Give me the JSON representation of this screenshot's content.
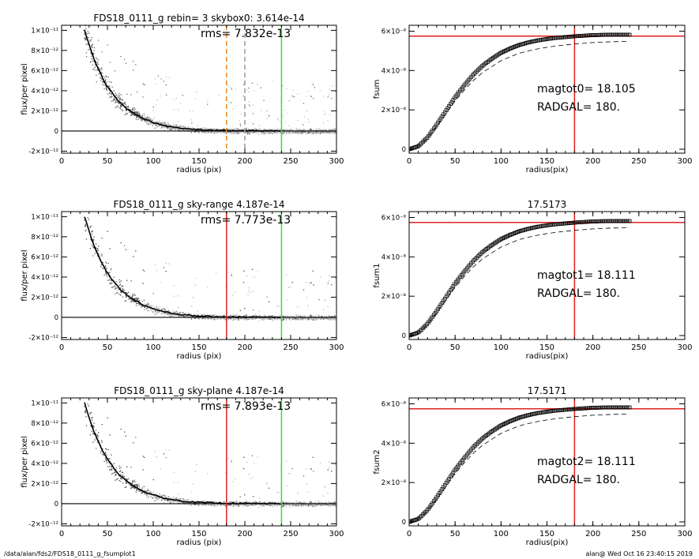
{
  "footer": {
    "left": "/data/alan/fds2/FDS18_0111_g_fsumplot1",
    "right": "alan@  Wed Oct 16 23:40:15 2019"
  },
  "colors": {
    "red": "#e02020",
    "green": "#33dd33",
    "orange": "#ee8822",
    "gray": "#999999",
    "scatter_dark": "#555555",
    "scatter_light": "#bbbbbb"
  },
  "chart_data": [
    {
      "type": "scatter",
      "panel": "profile-1",
      "title": "FDS18_0111_g rebin= 3    skybox0:  3.614e-14",
      "annotation": "rms= 7.832e-13",
      "xlabel": "radius (pix)",
      "ylabel": "flux/per pixel",
      "xlim": [
        0,
        300
      ],
      "ylim": [
        -2.2e-12,
        1.05e-11
      ],
      "xticks": [
        "0",
        "50",
        "100",
        "150",
        "200",
        "250",
        "300"
      ],
      "yticks": [
        {
          "value": 1e-11,
          "label": "1×10⁻¹¹"
        },
        {
          "value": 8e-12,
          "label": "8×10⁻¹²"
        },
        {
          "value": 6e-12,
          "label": "6×10⁻¹²"
        },
        {
          "value": 4e-12,
          "label": "4×10⁻¹²"
        },
        {
          "value": 2e-12,
          "label": "2×10⁻¹²"
        },
        {
          "value": 0,
          "label": "0"
        },
        {
          "value": -2e-12,
          "label": "-2×10⁻¹²"
        }
      ],
      "profile_x": [
        25,
        30,
        35,
        40,
        45,
        50,
        55,
        60,
        65,
        70,
        80,
        90,
        100,
        110,
        120,
        130,
        140,
        150,
        170,
        200,
        240
      ],
      "profile_y": [
        1e-11,
        8.6e-12,
        7.2e-12,
        6.2e-12,
        5.2e-12,
        4.4e-12,
        3.8e-12,
        3.2e-12,
        2.7e-12,
        2.3e-12,
        1.7e-12,
        1.2e-12,
        8.5e-13,
        6e-13,
        4e-13,
        2.8e-13,
        1.8e-13,
        1.2e-13,
        6e-14,
        2e-14,
        0
      ],
      "vlines": [
        {
          "x": 180,
          "color": "orange",
          "style": "dashed"
        },
        {
          "x": 200,
          "color": "gray",
          "style": "dashed"
        },
        {
          "x": 240,
          "color": "green",
          "style": "solid"
        }
      ]
    },
    {
      "type": "line",
      "panel": "curve-1",
      "title": "",
      "xlabel": "radius(pix)",
      "ylabel": "fsum",
      "xlim": [
        0,
        300
      ],
      "ylim": [
        -2e-09,
        6.3e-08
      ],
      "xticks": [
        "0",
        "50",
        "100",
        "150",
        "200",
        "250",
        "300"
      ],
      "yticks": [
        {
          "value": 6e-08,
          "label": "6×10⁻⁸"
        },
        {
          "value": 4e-08,
          "label": "4×10⁻⁸"
        },
        {
          "value": 2e-08,
          "label": "2×10⁻⁸"
        },
        {
          "value": 0,
          "label": "0"
        }
      ],
      "curve_x": [
        0,
        10,
        20,
        30,
        40,
        50,
        60,
        70,
        80,
        90,
        100,
        110,
        120,
        130,
        140,
        150,
        160,
        180,
        200,
        220,
        240
      ],
      "curve_y": [
        0,
        1.5e-09,
        6e-09,
        1.25e-08,
        1.95e-08,
        2.65e-08,
        3.25e-08,
        3.8e-08,
        4.25e-08,
        4.6e-08,
        4.9e-08,
        5.12e-08,
        5.3e-08,
        5.43e-08,
        5.53e-08,
        5.6e-08,
        5.66e-08,
        5.74e-08,
        5.8e-08,
        5.82e-08,
        5.82e-08
      ],
      "dashed_y": [
        0,
        1.4e-09,
        5.6e-09,
        1.15e-08,
        1.8e-08,
        2.45e-08,
        3e-08,
        3.5e-08,
        3.9e-08,
        4.2e-08,
        4.5e-08,
        4.7e-08,
        4.88e-08,
        5e-08,
        5.1e-08,
        5.18e-08,
        5.25e-08,
        5.35e-08,
        5.42e-08,
        5.46e-08,
        5.48e-08
      ],
      "hline": 5.75e-08,
      "vline": 180,
      "annotation_1": "magtot0=  18.105",
      "annotation_2": "RADGAL=    180."
    },
    {
      "type": "scatter",
      "panel": "profile-2",
      "title": "FDS18_0111_g sky-range  4.187e-14",
      "annotation": "rms= 7.773e-13",
      "xlabel": "radius (pix)",
      "ylabel": "flux/per pixel",
      "xlim": [
        0,
        300
      ],
      "ylim": [
        -2.2e-12,
        1.05e-11
      ],
      "xticks": [
        "0",
        "50",
        "100",
        "150",
        "200",
        "250",
        "300"
      ],
      "yticks": [
        {
          "value": 1e-11,
          "label": "1×10⁻¹¹"
        },
        {
          "value": 8e-12,
          "label": "8×10⁻¹²"
        },
        {
          "value": 6e-12,
          "label": "6×10⁻¹²"
        },
        {
          "value": 4e-12,
          "label": "4×10⁻¹²"
        },
        {
          "value": 2e-12,
          "label": "2×10⁻¹²"
        },
        {
          "value": 0,
          "label": "0"
        },
        {
          "value": -2e-12,
          "label": "-2×10⁻¹²"
        }
      ],
      "profile_x": [
        25,
        30,
        35,
        40,
        45,
        50,
        55,
        60,
        65,
        70,
        80,
        90,
        100,
        110,
        120,
        130,
        140,
        150,
        170,
        200,
        240
      ],
      "profile_y": [
        1e-11,
        8.6e-12,
        7.2e-12,
        6.2e-12,
        5.2e-12,
        4.4e-12,
        3.8e-12,
        3.2e-12,
        2.7e-12,
        2.3e-12,
        1.7e-12,
        1.2e-12,
        8.5e-13,
        6e-13,
        4e-13,
        2.8e-13,
        1.8e-13,
        1.2e-13,
        6e-14,
        2e-14,
        0
      ],
      "vlines": [
        {
          "x": 180,
          "color": "red",
          "style": "solid"
        },
        {
          "x": 240,
          "color": "green",
          "style": "solid"
        }
      ]
    },
    {
      "type": "line",
      "panel": "curve-2",
      "title": "17.5173",
      "xlabel": "radius(pix)",
      "ylabel": "fsum1",
      "xlim": [
        0,
        300
      ],
      "ylim": [
        -2e-09,
        6.3e-08
      ],
      "xticks": [
        "0",
        "50",
        "100",
        "150",
        "200",
        "250",
        "300"
      ],
      "yticks": [
        {
          "value": 6e-08,
          "label": "6×10⁻⁸"
        },
        {
          "value": 4e-08,
          "label": "4×10⁻⁸"
        },
        {
          "value": 2e-08,
          "label": "2×10⁻⁸"
        },
        {
          "value": 0,
          "label": "0"
        }
      ],
      "curve_x": [
        0,
        10,
        20,
        30,
        40,
        50,
        60,
        70,
        80,
        90,
        100,
        110,
        120,
        130,
        140,
        150,
        160,
        180,
        200,
        220,
        240
      ],
      "curve_y": [
        0,
        1.5e-09,
        6e-09,
        1.25e-08,
        1.95e-08,
        2.65e-08,
        3.25e-08,
        3.8e-08,
        4.25e-08,
        4.6e-08,
        4.9e-08,
        5.12e-08,
        5.3e-08,
        5.43e-08,
        5.53e-08,
        5.6e-08,
        5.66e-08,
        5.74e-08,
        5.8e-08,
        5.82e-08,
        5.82e-08
      ],
      "dashed_y": [
        0,
        1.4e-09,
        5.6e-09,
        1.15e-08,
        1.8e-08,
        2.45e-08,
        3e-08,
        3.5e-08,
        3.9e-08,
        4.2e-08,
        4.5e-08,
        4.7e-08,
        4.88e-08,
        5e-08,
        5.1e-08,
        5.18e-08,
        5.25e-08,
        5.35e-08,
        5.42e-08,
        5.46e-08,
        5.48e-08
      ],
      "hline": 5.75e-08,
      "vline": 180,
      "annotation_1": "magtot1=  18.111",
      "annotation_2": "RADGAL=    180."
    },
    {
      "type": "scatter",
      "panel": "profile-3",
      "title": "FDS18_0111_g sky-plane  4.187e-14",
      "annotation": "rms= 7.893e-13",
      "xlabel": "radius (pix)",
      "ylabel": "flux/per pixel",
      "xlim": [
        0,
        300
      ],
      "ylim": [
        -2.2e-12,
        1.05e-11
      ],
      "xticks": [
        "0",
        "50",
        "100",
        "150",
        "200",
        "250",
        "300"
      ],
      "yticks": [
        {
          "value": 1e-11,
          "label": "1×10⁻¹¹"
        },
        {
          "value": 8e-12,
          "label": "8×10⁻¹²"
        },
        {
          "value": 6e-12,
          "label": "6×10⁻¹²"
        },
        {
          "value": 4e-12,
          "label": "4×10⁻¹²"
        },
        {
          "value": 2e-12,
          "label": "2×10⁻¹²"
        },
        {
          "value": 0,
          "label": "0"
        },
        {
          "value": -2e-12,
          "label": "-2×10⁻¹²"
        }
      ],
      "profile_x": [
        25,
        30,
        35,
        40,
        45,
        50,
        55,
        60,
        65,
        70,
        80,
        90,
        100,
        110,
        120,
        130,
        140,
        150,
        170,
        200,
        240
      ],
      "profile_y": [
        1e-11,
        8.6e-12,
        7.2e-12,
        6.2e-12,
        5.2e-12,
        4.4e-12,
        3.8e-12,
        3.2e-12,
        2.7e-12,
        2.3e-12,
        1.7e-12,
        1.2e-12,
        8.5e-13,
        6e-13,
        4e-13,
        2.8e-13,
        1.8e-13,
        1.2e-13,
        6e-14,
        2e-14,
        0
      ],
      "vlines": [
        {
          "x": 180,
          "color": "red",
          "style": "solid"
        },
        {
          "x": 240,
          "color": "green",
          "style": "solid"
        }
      ]
    },
    {
      "type": "line",
      "panel": "curve-3",
      "title": "17.5171",
      "xlabel": "radius(pix)",
      "ylabel": "fsum2",
      "xlim": [
        0,
        300
      ],
      "ylim": [
        -2e-09,
        6.3e-08
      ],
      "xticks": [
        "0",
        "50",
        "100",
        "150",
        "200",
        "250",
        "300"
      ],
      "yticks": [
        {
          "value": 6e-08,
          "label": "6×10⁻⁸"
        },
        {
          "value": 4e-08,
          "label": "4×10⁻⁸"
        },
        {
          "value": 2e-08,
          "label": "2×10⁻⁸"
        },
        {
          "value": 0,
          "label": "0"
        }
      ],
      "curve_x": [
        0,
        10,
        20,
        30,
        40,
        50,
        60,
        70,
        80,
        90,
        100,
        110,
        120,
        130,
        140,
        150,
        160,
        180,
        200,
        220,
        240
      ],
      "curve_y": [
        0,
        1.5e-09,
        6e-09,
        1.25e-08,
        1.95e-08,
        2.65e-08,
        3.25e-08,
        3.8e-08,
        4.25e-08,
        4.6e-08,
        4.9e-08,
        5.12e-08,
        5.3e-08,
        5.43e-08,
        5.53e-08,
        5.6e-08,
        5.66e-08,
        5.74e-08,
        5.8e-08,
        5.82e-08,
        5.82e-08
      ],
      "dashed_y": [
        0,
        1.4e-09,
        5.6e-09,
        1.15e-08,
        1.8e-08,
        2.45e-08,
        3e-08,
        3.5e-08,
        3.9e-08,
        4.2e-08,
        4.5e-08,
        4.7e-08,
        4.88e-08,
        5e-08,
        5.1e-08,
        5.18e-08,
        5.25e-08,
        5.35e-08,
        5.42e-08,
        5.46e-08,
        5.48e-08
      ],
      "hline": 5.75e-08,
      "vline": 180,
      "annotation_1": "magtot2=  18.111",
      "annotation_2": "RADGAL=    180."
    }
  ]
}
